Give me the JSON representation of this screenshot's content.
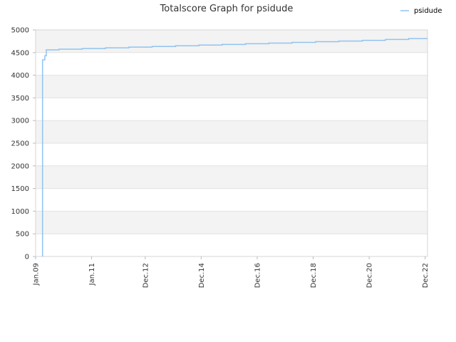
{
  "chart_data": {
    "type": "line",
    "title": "Totalscore Graph for psidude",
    "xlabel": "",
    "ylabel": "",
    "ylim": [
      0,
      5000
    ],
    "xlim": [
      "2009-01-01",
      "2023-01-01"
    ],
    "grid": true,
    "legend_position": "top-right",
    "y_ticks": [
      0,
      500,
      1000,
      1500,
      2000,
      2500,
      3000,
      3500,
      4000,
      4500,
      5000
    ],
    "x_ticks": [
      {
        "date": "2009-01-01",
        "label": "Jan.09"
      },
      {
        "date": "2011-01-01",
        "label": "Jan.11"
      },
      {
        "date": "2012-12-01",
        "label": "Dec.12"
      },
      {
        "date": "2014-12-01",
        "label": "Dec.14"
      },
      {
        "date": "2016-12-01",
        "label": "Dec.16"
      },
      {
        "date": "2018-12-01",
        "label": "Dec.18"
      },
      {
        "date": "2020-12-01",
        "label": "Dec.20"
      },
      {
        "date": "2022-12-01",
        "label": "Dec.22"
      }
    ],
    "series": [
      {
        "name": "psidude",
        "color": "#90c3f0",
        "points": [
          {
            "x": "2009-04-01",
            "y": 0
          },
          {
            "x": "2009-04-01",
            "y": 4340
          },
          {
            "x": "2009-05-01",
            "y": 4340
          },
          {
            "x": "2009-05-01",
            "y": 4430
          },
          {
            "x": "2009-05-20",
            "y": 4430
          },
          {
            "x": "2009-05-20",
            "y": 4560
          },
          {
            "x": "2009-11-01",
            "y": 4560
          },
          {
            "x": "2009-11-01",
            "y": 4575
          },
          {
            "x": "2010-09-01",
            "y": 4575
          },
          {
            "x": "2010-09-01",
            "y": 4590
          },
          {
            "x": "2011-07-01",
            "y": 4590
          },
          {
            "x": "2011-07-01",
            "y": 4605
          },
          {
            "x": "2012-05-01",
            "y": 4605
          },
          {
            "x": "2012-05-01",
            "y": 4620
          },
          {
            "x": "2013-03-01",
            "y": 4620
          },
          {
            "x": "2013-03-01",
            "y": 4635
          },
          {
            "x": "2014-01-01",
            "y": 4635
          },
          {
            "x": "2014-01-01",
            "y": 4650
          },
          {
            "x": "2014-11-01",
            "y": 4650
          },
          {
            "x": "2014-11-01",
            "y": 4665
          },
          {
            "x": "2015-09-01",
            "y": 4665
          },
          {
            "x": "2015-09-01",
            "y": 4680
          },
          {
            "x": "2016-07-01",
            "y": 4680
          },
          {
            "x": "2016-07-01",
            "y": 4695
          },
          {
            "x": "2017-05-01",
            "y": 4695
          },
          {
            "x": "2017-05-01",
            "y": 4710
          },
          {
            "x": "2018-03-01",
            "y": 4710
          },
          {
            "x": "2018-03-01",
            "y": 4725
          },
          {
            "x": "2019-01-01",
            "y": 4725
          },
          {
            "x": "2019-01-01",
            "y": 4740
          },
          {
            "x": "2019-11-01",
            "y": 4740
          },
          {
            "x": "2019-11-01",
            "y": 4755
          },
          {
            "x": "2020-09-01",
            "y": 4755
          },
          {
            "x": "2020-09-01",
            "y": 4770
          },
          {
            "x": "2021-07-01",
            "y": 4770
          },
          {
            "x": "2021-07-01",
            "y": 4790
          },
          {
            "x": "2022-05-01",
            "y": 4790
          },
          {
            "x": "2022-05-01",
            "y": 4810
          },
          {
            "x": "2023-01-01",
            "y": 4810
          }
        ]
      }
    ]
  }
}
